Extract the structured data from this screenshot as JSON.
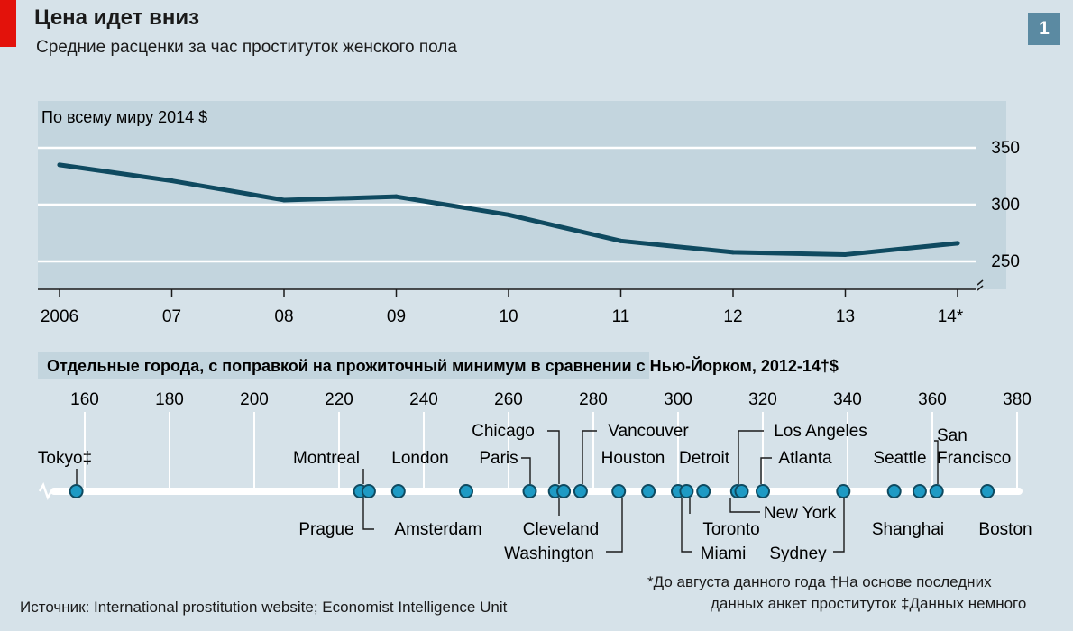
{
  "header": {
    "title": "Цена идет вниз",
    "subtitle": "Средние расценки за час проституток женского пола",
    "chart_number": "1"
  },
  "colors": {
    "background": "#d6e2e9",
    "panel": "#c3d5de",
    "line": "#0f4a60",
    "dot": "#1e9ac4",
    "accent": "#e3120b"
  },
  "chart_data": [
    {
      "type": "line",
      "title": "По всему миру  2014 $",
      "categories": [
        "2006",
        "07",
        "08",
        "09",
        "10",
        "11",
        "12",
        "13",
        "14*"
      ],
      "series": [
        {
          "name": "Средняя цена за час",
          "values": [
            335,
            321,
            304,
            307,
            291,
            268,
            258,
            256,
            266
          ]
        }
      ],
      "ylim": [
        230,
        365
      ],
      "yticks": [
        "350",
        "300",
        "250"
      ],
      "xlabel": "",
      "ylabel": "",
      "grid": true
    },
    {
      "type": "scatter",
      "title": "Отдельные города, с поправкой на прожиточный минимум в сравнении с Нью-Йорком, 2012-14†$",
      "xlim": [
        153,
        382
      ],
      "xticks": [
        "160",
        "180",
        "200",
        "220",
        "240",
        "260",
        "280",
        "300",
        "320",
        "340",
        "360",
        "380"
      ],
      "points": [
        {
          "city": "Tokyo‡",
          "value": 158
        },
        {
          "city": "Prague",
          "value": 225
        },
        {
          "city": "Montreal",
          "value": 227
        },
        {
          "city": "London",
          "value": 234
        },
        {
          "city": "Amsterdam",
          "value": 250
        },
        {
          "city": "Paris",
          "value": 265
        },
        {
          "city": "Cleveland",
          "value": 271
        },
        {
          "city": "Chicago",
          "value": 273
        },
        {
          "city": "Vancouver",
          "value": 277
        },
        {
          "city": "Washington",
          "value": 286
        },
        {
          "city": "Houston",
          "value": 293
        },
        {
          "city": "Miami",
          "value": 300
        },
        {
          "city": "Detroit",
          "value": 302
        },
        {
          "city": "Toronto",
          "value": 306
        },
        {
          "city": "Los Angeles",
          "value": 314
        },
        {
          "city": "Atlanta",
          "value": 315
        },
        {
          "city": "New York",
          "value": 320
        },
        {
          "city": "Sydney",
          "value": 339
        },
        {
          "city": "Seattle",
          "value": 351
        },
        {
          "city": "Shanghai",
          "value": 357
        },
        {
          "city": "San Francisco",
          "value": 361
        },
        {
          "city": "Boston",
          "value": 373
        }
      ]
    }
  ],
  "footnotes": {
    "line1": "*До августа данного года †На основе последних",
    "line2": "данных анкет проституток ‡Данных немного"
  },
  "source": {
    "label": "Источник",
    "text": ": International prostitution website; Economist Intelligence Unit"
  }
}
